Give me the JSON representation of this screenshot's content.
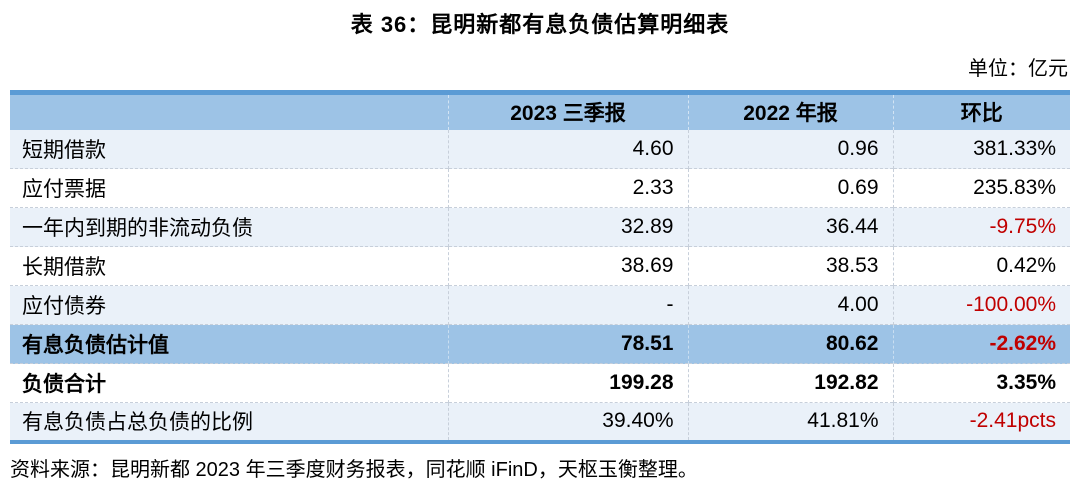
{
  "title": "表 36：昆明新都有息负债估算明细表",
  "unit_label": "单位：亿元",
  "table": {
    "columns": [
      "",
      "2023 三季报",
      "2022 年报",
      "环比"
    ],
    "rows": [
      {
        "label": "短期借款",
        "q3_2023": "4.60",
        "fy_2022": "0.96",
        "qoq": "381.33%"
      },
      {
        "label": "应付票据",
        "q3_2023": "2.33",
        "fy_2022": "0.69",
        "qoq": "235.83%"
      },
      {
        "label": "一年内到期的非流动负债",
        "q3_2023": "32.89",
        "fy_2022": "36.44",
        "qoq": "-9.75%"
      },
      {
        "label": "长期借款",
        "q3_2023": "38.69",
        "fy_2022": "38.53",
        "qoq": "0.42%"
      },
      {
        "label": "应付债券",
        "q3_2023": "-",
        "fy_2022": "4.00",
        "qoq": "-100.00%"
      },
      {
        "label": "有息负债估计值",
        "q3_2023": "78.51",
        "fy_2022": "80.62",
        "qoq": "-2.62%"
      },
      {
        "label": "负债合计",
        "q3_2023": "199.28",
        "fy_2022": "192.82",
        "qoq": "3.35%"
      },
      {
        "label": "有息负债占总负债的比例",
        "q3_2023": "39.40%",
        "fy_2022": "41.81%",
        "qoq": "-2.41pcts"
      }
    ]
  },
  "source_note": "资料来源：昆明新都 2023 年三季度财务报表，同花顺 iFinD，天枢玉衡整理。",
  "colors": {
    "accent_border": "#5B9BD5",
    "header_fill": "#9DC3E6",
    "highlight_row_fill": "#9DC3E6",
    "alt_row_fill": "#EAF1F9",
    "negative_value_red": "#C00000",
    "text": "#000000"
  }
}
